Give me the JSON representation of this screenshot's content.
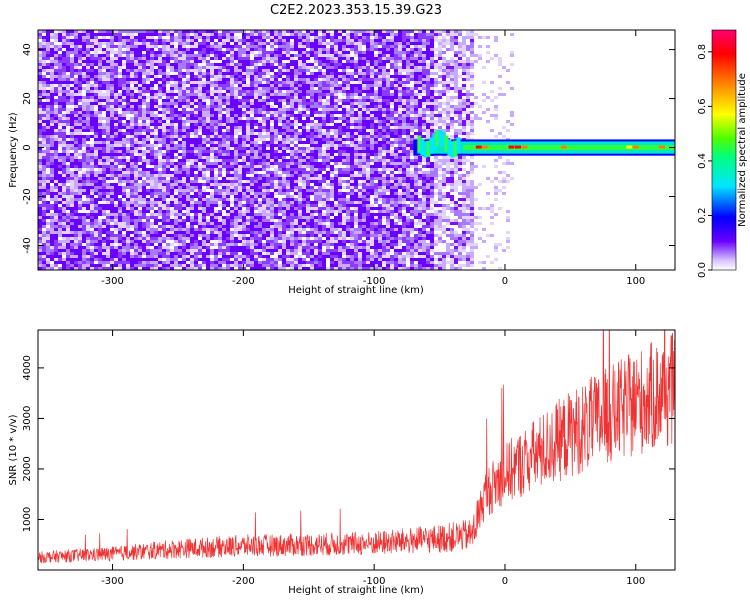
{
  "title": "C2E2.2023.353.15.39.G23",
  "colors": {
    "snr_line": "#f03232",
    "noise_purple": "#6a00ff",
    "colormap": [
      "#ffffff",
      "#b48cff",
      "#6a00ff",
      "#0000ff",
      "#00e6ff",
      "#00ff80",
      "#50ff00",
      "#ffff00",
      "#ff8000",
      "#ff0000",
      "#ff0070"
    ]
  },
  "chart_data": [
    {
      "type": "heatmap",
      "name": "spectrogram",
      "xlabel": "Height of straight line (km)",
      "ylabel": "Frequency (Hz)",
      "xlim": [
        -357,
        130
      ],
      "ylim": [
        -50,
        48
      ],
      "x_ticks": [
        -300,
        -200,
        -100,
        0,
        100
      ],
      "y_ticks": [
        -40,
        -20,
        0,
        20,
        40
      ],
      "colorbar": {
        "label": "Normalized spectral amplitude",
        "range": [
          0,
          0.88
        ],
        "ticks": [
          0.0,
          0.2,
          0.4,
          0.6,
          0.8
        ]
      },
      "noise_floor_region_km": [
        -357,
        -25
      ],
      "signal": {
        "start_km": -70,
        "end_km": 130,
        "center_freq_hz": 0,
        "band_halfwidth_hz": 2.5,
        "peak_amplitude": 0.88
      }
    },
    {
      "type": "line",
      "name": "snr",
      "xlabel": "Height of straight line (km)",
      "ylabel": "SNR (10 * v/v)",
      "xlim": [
        -357,
        130
      ],
      "ylim": [
        0,
        4750
      ],
      "x_ticks": [
        -300,
        -200,
        -100,
        0,
        100
      ],
      "y_ticks": [
        1000,
        2000,
        3000,
        4000
      ],
      "series": [
        {
          "x": [
            -357,
            -300,
            -250,
            -200,
            -150,
            -100,
            -50,
            -25,
            -15,
            0,
            25,
            50,
            75,
            100,
            130
          ],
          "y": [
            250,
            320,
            420,
            480,
            500,
            530,
            620,
            700,
            1500,
            1900,
            2300,
            2700,
            3000,
            3300,
            3600
          ]
        }
      ]
    }
  ]
}
